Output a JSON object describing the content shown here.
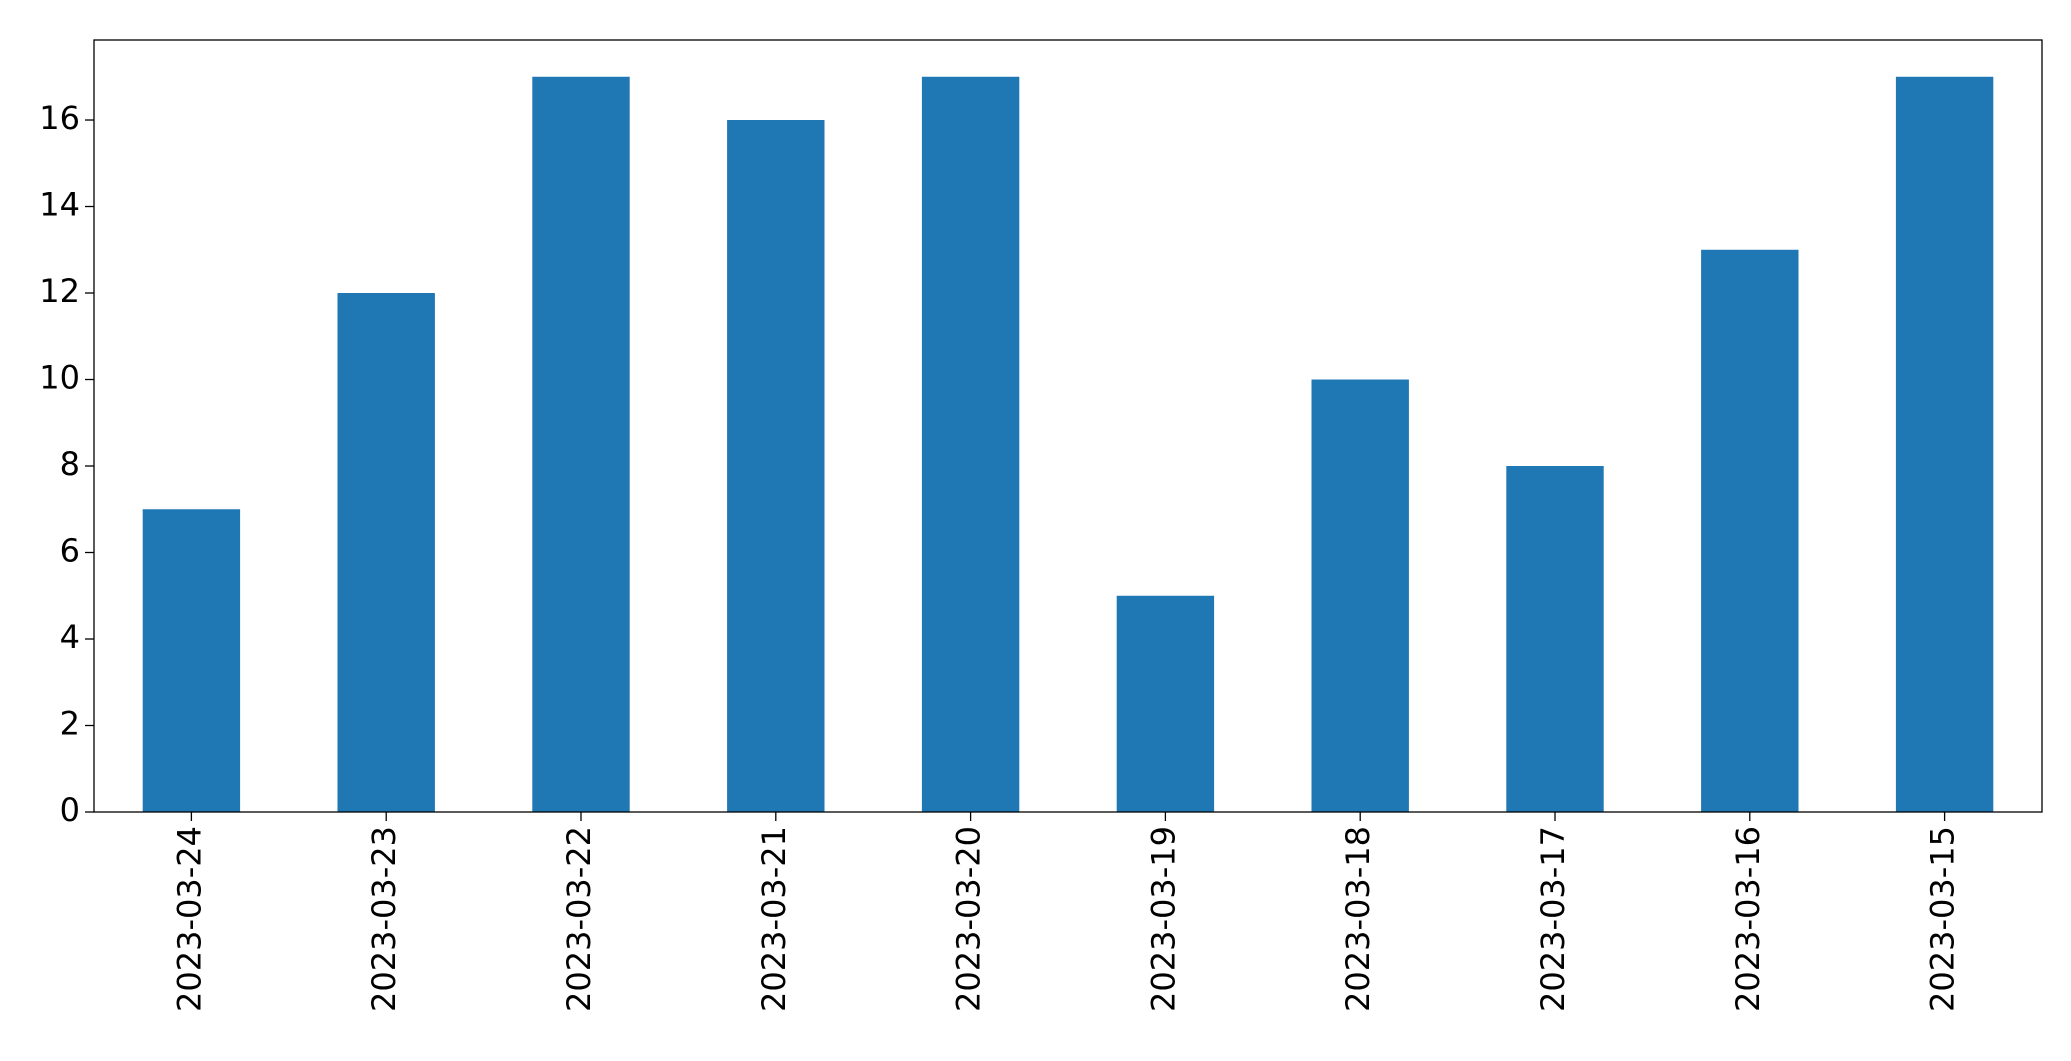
{
  "chart_data": {
    "type": "bar",
    "categories": [
      "2023-03-24",
      "2023-03-23",
      "2023-03-22",
      "2023-03-21",
      "2023-03-20",
      "2023-03-19",
      "2023-03-18",
      "2023-03-17",
      "2023-03-16",
      "2023-03-15"
    ],
    "values": [
      7,
      12,
      17,
      16,
      17,
      5,
      10,
      8,
      13,
      17
    ],
    "color": "#1f77b4",
    "ylim": [
      0,
      17.85
    ],
    "yticks": [
      0,
      2,
      4,
      6,
      8,
      10,
      12,
      14,
      16
    ],
    "grid": false
  }
}
